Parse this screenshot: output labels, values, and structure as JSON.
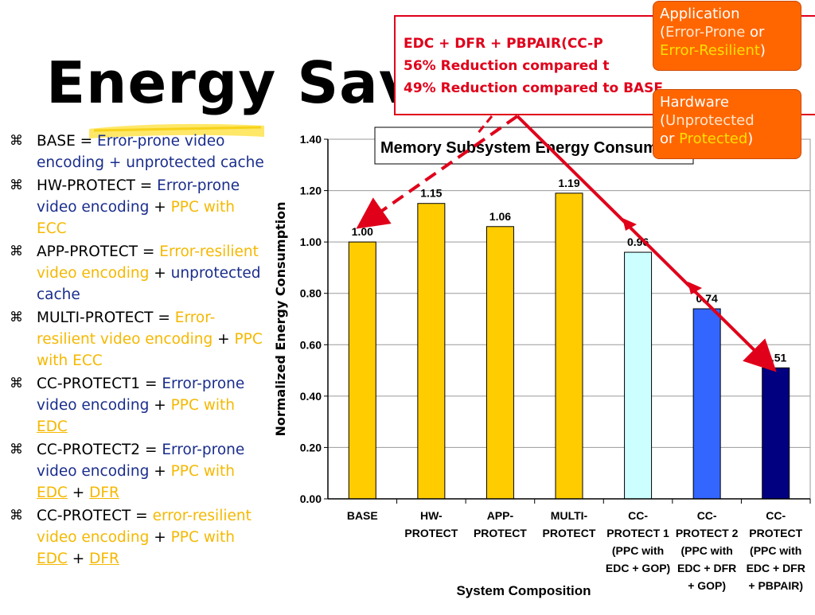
{
  "slide": {
    "title": "Energy Sav",
    "bullets": [
      {
        "label": "BASE = ",
        "parts": [
          {
            "t": "Error-prone video encoding + unprotected cache",
            "c": "blue"
          }
        ]
      },
      {
        "label": "HW-PROTECT = ",
        "parts": [
          {
            "t": "Error-prone video encoding",
            "c": "blue"
          },
          {
            "t": " + ",
            "c": ""
          },
          {
            "t": "PPC with ECC",
            "c": "yellow"
          }
        ]
      },
      {
        "label": "APP-PROTECT = ",
        "parts": [
          {
            "t": "Error-resilient video encoding",
            "c": "yellow"
          },
          {
            "t": " + ",
            "c": ""
          },
          {
            "t": "unprotected cache",
            "c": "blue"
          }
        ]
      },
      {
        "label": "MULTI-PROTECT = ",
        "parts": [
          {
            "t": "Error-resilient video encoding",
            "c": "yellow"
          },
          {
            "t": " + ",
            "c": ""
          },
          {
            "t": "PPC with ECC",
            "c": "yellow"
          }
        ]
      },
      {
        "label": "CC-PROTECT1 = ",
        "parts": [
          {
            "t": "Error-prone video encoding",
            "c": "blue"
          },
          {
            "t": " + ",
            "c": ""
          },
          {
            "t": "PPC with ",
            "c": "yellow"
          },
          {
            "t": "EDC",
            "c": "yellow ul"
          }
        ]
      },
      {
        "label": "CC-PROTECT2 = ",
        "parts": [
          {
            "t": "Error-prone video encoding",
            "c": "blue"
          },
          {
            "t": " + ",
            "c": ""
          },
          {
            "t": "PPC with ",
            "c": "yellow"
          },
          {
            "t": "EDC",
            "c": "yellow ul"
          },
          {
            "t": " + ",
            "c": ""
          },
          {
            "t": "DFR",
            "c": "yellow ul"
          }
        ]
      },
      {
        "label": "CC-PROTECT = ",
        "parts": [
          {
            "t": "error-resilient video encoding",
            "c": "yellow"
          },
          {
            "t": " + ",
            "c": ""
          },
          {
            "t": "PPC with ",
            "c": "yellow"
          },
          {
            "t": "EDC",
            "c": "yellow ul"
          },
          {
            "t": " + ",
            "c": ""
          },
          {
            "t": "DFR",
            "c": "yellow ul"
          }
        ]
      }
    ],
    "bullet_symbol": "⌘",
    "callout_red": {
      "line1": "EDC + DFR + PBPAIR(CC-P",
      "line2": "56% Reduction compared t",
      "line3": "49% Reduction compared to BASE"
    },
    "callout_application": {
      "title": "Application",
      "open": "(",
      "a": "Error-Prone",
      "or": " or",
      "b": "Error-Resilient",
      "close": ")"
    },
    "callout_hardware": {
      "title": "Hardware",
      "open": "(",
      "a": "Unprotected",
      "or": " or ",
      "b": "Protected",
      "close": ")"
    },
    "colors": {
      "red": "#e0001a",
      "orange": "#ff6600",
      "blue_text": "#1a2d8c",
      "yellow_text": "#f5b800"
    }
  },
  "chart_data": {
    "type": "bar",
    "title": "Memory Subsystem Energy Consum",
    "ylabel": "Normalized Energy Consumption",
    "xlabel": "System Composition",
    "ylim": [
      0,
      1.4
    ],
    "yticks": [
      "0.00",
      "0.20",
      "0.40",
      "0.60",
      "0.80",
      "1.00",
      "1.20",
      "1.40"
    ],
    "categories": [
      [
        "BASE"
      ],
      [
        "HW-",
        "PROTECT"
      ],
      [
        "APP-",
        "PROTECT"
      ],
      [
        "MULTI-",
        "PROTECT"
      ],
      [
        "CC-",
        "PROTECT 1",
        "(PPC with",
        "EDC + GOP)"
      ],
      [
        "CC-",
        "PROTECT 2",
        "(PPC with",
        "EDC + DFR",
        "+ GOP)"
      ],
      [
        "CC-",
        "PROTECT",
        "(PPC with",
        "EDC + DFR",
        "+ PBPAIR)"
      ]
    ],
    "values": [
      1.0,
      1.15,
      1.06,
      1.19,
      0.96,
      0.74,
      0.51
    ],
    "value_labels": [
      "1.00",
      "1.15",
      "1.06",
      "1.19",
      "0.96",
      "0.74",
      "0.51"
    ],
    "bar_colors": [
      "#ffcc00",
      "#ffcc00",
      "#ffcc00",
      "#ffcc00",
      "#ccffff",
      "#3366ff",
      "#000080"
    ],
    "grid": true,
    "legend": "none"
  }
}
